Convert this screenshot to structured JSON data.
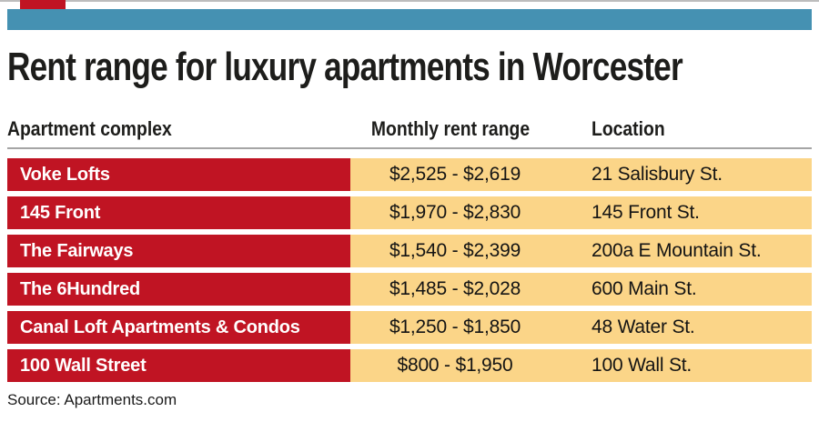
{
  "page": {
    "title": "Rent range for luxury apartments in Worcester",
    "source": "Source: Apartments.com"
  },
  "table": {
    "headers": [
      "Apartment complex",
      "Monthly rent range",
      "Location"
    ],
    "rows": [
      {
        "name": "Voke Lofts",
        "rent": "$2,525 - $2,619",
        "location": "21 Salisbury St."
      },
      {
        "name": "145 Front",
        "rent": "$1,970 - $2,830",
        "location": "145 Front St."
      },
      {
        "name": "The Fairways",
        "rent": "$1,540 - $2,399",
        "location": "200a E Mountain St."
      },
      {
        "name": "The 6Hundred",
        "rent": "$1,485 - $2,028",
        "location": "600 Main St."
      },
      {
        "name": "Canal Loft Apartments & Condos",
        "rent": "$1,250 - $1,850",
        "location": "48 Water St."
      },
      {
        "name": "100 Wall Street",
        "rent": "$800 - $1,950",
        "location": "100 Wall St."
      }
    ]
  },
  "colors": {
    "red": "#c01423",
    "tan": "#fbd588",
    "teal": "#4591b2",
    "rule": "#a5a5a5",
    "hairline": "#bdbdbd",
    "ink": "#1d1d1b"
  },
  "chart_data": {
    "type": "table",
    "title": "Rent range for luxury apartments in Worcester",
    "columns": [
      "Apartment complex",
      "Monthly rent range",
      "Location"
    ],
    "rows": [
      [
        "Voke Lofts",
        "$2,525 - $2,619",
        "21 Salisbury St."
      ],
      [
        "145 Front",
        "$1,970 - $2,830",
        "145 Front St."
      ],
      [
        "The Fairways",
        "$1,540 - $2,399",
        "200a E Mountain St."
      ],
      [
        "The 6Hundred",
        "$1,485 - $2,028",
        "600 Main St."
      ],
      [
        "Canal Loft Apartments & Condos",
        "$1,250 - $1,850",
        "48 Water St."
      ],
      [
        "100 Wall Street",
        "$800 - $1,950",
        "100 Wall St."
      ]
    ],
    "rent_values": [
      {
        "complex": "Voke Lofts",
        "min": 2525,
        "max": 2619
      },
      {
        "complex": "145 Front",
        "min": 1970,
        "max": 2830
      },
      {
        "complex": "The Fairways",
        "min": 1540,
        "max": 2399
      },
      {
        "complex": "The 6Hundred",
        "min": 1485,
        "max": 2028
      },
      {
        "complex": "Canal Loft Apartments & Condos",
        "min": 1250,
        "max": 1850
      },
      {
        "complex": "100 Wall Street",
        "min": 800,
        "max": 1950
      }
    ],
    "source": "Apartments.com"
  }
}
